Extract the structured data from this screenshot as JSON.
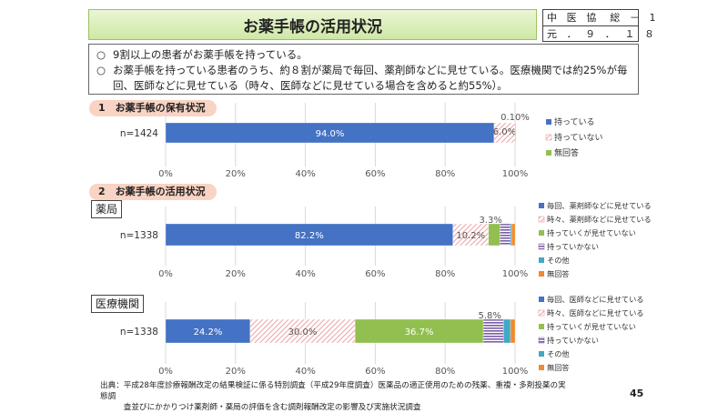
{
  "header": {
    "title": "お薬手帳の活用状況",
    "ref_line1": "中 医 協　総 － 1",
    "ref_line2": "元 ．　９ ． １ ８"
  },
  "summary": {
    "items": [
      {
        "bullet": "○",
        "text": "9割以上の患者がお薬手帳を持っている。"
      },
      {
        "bullet": "○",
        "text": "お薬手帳を持っている患者のうち、約８割が薬局で毎回、薬剤師などに見せている。医療機関では約25%が毎回、医師などに見せている（時々、医師などに見せている場合を含めると約55%）。"
      }
    ]
  },
  "sections": {
    "s1": "1　お薬手帳の保有状況",
    "s2": "2　お薬手帳の活用状況",
    "pharmacy_label": "薬局",
    "clinic_label": "医療機関"
  },
  "colors": {
    "blue": "#4472c4",
    "red_hatch": "#e88a8a",
    "green": "#92c050",
    "purple": "#7a5ca8",
    "teal": "#3fa9c9",
    "orange": "#f08a2c"
  },
  "chart_data": [
    {
      "type": "bar",
      "orientation": "horizontal-stacked-100",
      "categories": [
        "n=1424"
      ],
      "xlim": [
        0,
        100
      ],
      "xticks": [
        "0%",
        "20%",
        "40%",
        "60%",
        "80%",
        "100%"
      ],
      "series": [
        {
          "name": "持っている",
          "values": [
            94.0
          ],
          "label": "94.0%",
          "color": "#4472c4",
          "pattern": "solid"
        },
        {
          "name": "持っていない",
          "values": [
            6.0
          ],
          "label": "6.0%",
          "color": "#e88a8a",
          "pattern": "hatch"
        },
        {
          "name": "無回答",
          "values": [
            0.1
          ],
          "label": "0.10%",
          "color": "#92c050",
          "pattern": "solid"
        }
      ],
      "legend": "right"
    },
    {
      "type": "bar",
      "orientation": "horizontal-stacked-100",
      "categories": [
        "n=1338"
      ],
      "xlim": [
        0,
        100
      ],
      "xticks": [
        "0%",
        "20%",
        "40%",
        "60%",
        "80%",
        "100%"
      ],
      "series": [
        {
          "name": "毎回、薬剤師などに見せている",
          "values": [
            82.2
          ],
          "label": "82.2%",
          "color": "#4472c4",
          "pattern": "solid"
        },
        {
          "name": "時々、薬剤師などに見せている",
          "values": [
            10.2
          ],
          "label": "10.2%",
          "color": "#e88a8a",
          "pattern": "hatch"
        },
        {
          "name": "持っていくが見せていない",
          "values": [
            3.3
          ],
          "label": "3.3%",
          "color": "#92c050",
          "pattern": "solid"
        },
        {
          "name": "持っていかない",
          "values": [
            3.0
          ],
          "label": "",
          "color": "#7a5ca8",
          "pattern": "stripe"
        },
        {
          "name": "その他",
          "values": [
            0.3
          ],
          "label": "",
          "color": "#3fa9c9",
          "pattern": "solid"
        },
        {
          "name": "無回答",
          "values": [
            1.0
          ],
          "label": "",
          "color": "#f08a2c",
          "pattern": "solid"
        }
      ],
      "legend": "right"
    },
    {
      "type": "bar",
      "orientation": "horizontal-stacked-100",
      "categories": [
        "n=1338"
      ],
      "xlim": [
        0,
        100
      ],
      "xticks": [
        "0%",
        "20%",
        "40%",
        "60%",
        "80%",
        "100%"
      ],
      "series": [
        {
          "name": "毎回、医師などに見せている",
          "values": [
            24.2
          ],
          "label": "24.2%",
          "color": "#4472c4",
          "pattern": "solid"
        },
        {
          "name": "時々、医師などに見せている",
          "values": [
            30.0
          ],
          "label": "30.0%",
          "color": "#e88a8a",
          "pattern": "hatch"
        },
        {
          "name": "持っていくが見せていない",
          "values": [
            36.7
          ],
          "label": "36.7%",
          "color": "#92c050",
          "pattern": "solid"
        },
        {
          "name": "持っていかない",
          "values": [
            5.8
          ],
          "label": "5.8%",
          "color": "#7a5ca8",
          "pattern": "stripe"
        },
        {
          "name": "その他",
          "values": [
            2.0
          ],
          "label": "",
          "color": "#3fa9c9",
          "pattern": "solid"
        },
        {
          "name": "無回答",
          "values": [
            1.3
          ],
          "label": "",
          "color": "#f08a2c",
          "pattern": "solid"
        }
      ],
      "legend": "right"
    }
  ],
  "footer": {
    "source_line1": "出典：平成28年度診療報酬改定の結果検証に係る特別調査（平成29年度調査）医薬品の適正使用のための残薬、重複・多剤投薬の実態調",
    "source_line2": "　　　査並びにかかりつけ薬剤師・薬局の評価を含む調剤報酬改定の影響及び実施状況調査",
    "page_number": "45"
  }
}
